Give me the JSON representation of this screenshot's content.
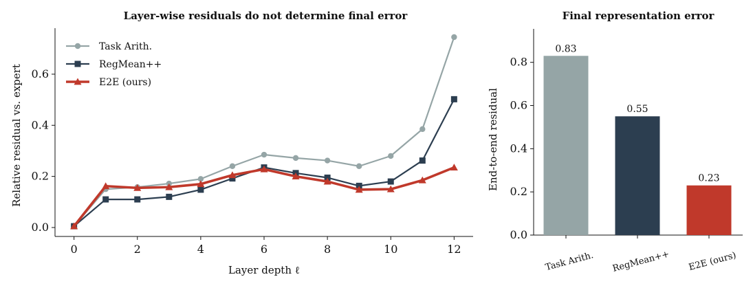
{
  "chart_data": [
    {
      "type": "line",
      "title": "Layer-wise residuals do not determine final error",
      "xlabel": "Layer depth ℓ",
      "ylabel": "Relative residual vs. expert",
      "xlim": [
        -0.6,
        12.6
      ],
      "ylim": [
        -0.035,
        0.78
      ],
      "xticks": [
        0,
        2,
        4,
        6,
        8,
        10,
        12
      ],
      "yticks": [
        0.0,
        0.2,
        0.4,
        0.6
      ],
      "grid": false,
      "legend_position": "top-left",
      "x": [
        0,
        1,
        2,
        3,
        4,
        5,
        6,
        7,
        8,
        9,
        10,
        11,
        12
      ],
      "series": [
        {
          "name": "Task Arith.",
          "color": "#95a5a6",
          "marker": "circle",
          "values": [
            0.005,
            0.15,
            0.158,
            0.172,
            0.19,
            0.24,
            0.285,
            0.272,
            0.262,
            0.24,
            0.28,
            0.385,
            0.745
          ]
        },
        {
          "name": "RegMean++",
          "color": "#2c3e50",
          "marker": "square",
          "values": [
            0.005,
            0.11,
            0.11,
            0.12,
            0.148,
            0.192,
            0.235,
            0.213,
            0.195,
            0.163,
            0.18,
            0.262,
            0.502
          ]
        },
        {
          "name": "E2E (ours)",
          "color": "#c0392b",
          "marker": "triangle",
          "values": [
            0.005,
            0.162,
            0.155,
            0.158,
            0.17,
            0.205,
            0.228,
            0.2,
            0.18,
            0.148,
            0.15,
            0.185,
            0.235
          ]
        }
      ]
    },
    {
      "type": "bar",
      "title": "Final representation error",
      "xlabel": "",
      "ylabel": "End-to-end residual",
      "ylim": [
        0,
        0.955
      ],
      "yticks": [
        0.0,
        0.2,
        0.4,
        0.6,
        0.8
      ],
      "grid": false,
      "categories": [
        "Task Arith.",
        "RegMean++",
        "E2E (ours)"
      ],
      "values": [
        0.83,
        0.55,
        0.23
      ],
      "value_labels": [
        "0.83",
        "0.55",
        "0.23"
      ],
      "colors": [
        "#95a5a6",
        "#2c3e50",
        "#c0392b"
      ]
    }
  ]
}
